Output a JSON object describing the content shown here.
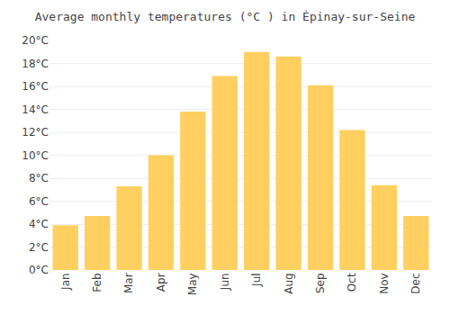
{
  "chart_data": {
    "type": "bar",
    "title": "Average monthly temperatures (°C ) in Épinay-sur-Seine",
    "categories": [
      "Jan",
      "Feb",
      "Mar",
      "Apr",
      "May",
      "Jun",
      "Jul",
      "Aug",
      "Sep",
      "Oct",
      "Nov",
      "Dec"
    ],
    "values": [
      3.9,
      4.7,
      7.3,
      10.0,
      13.8,
      16.9,
      19.0,
      18.6,
      16.1,
      12.2,
      7.4,
      4.7
    ],
    "color": "#FFD060",
    "ylim": [
      0,
      20
    ],
    "yticks": [
      {
        "value": 0,
        "label": "0°C"
      },
      {
        "value": 2,
        "label": "2°C"
      },
      {
        "value": 4,
        "label": "4°C"
      },
      {
        "value": 6,
        "label": "6°C"
      },
      {
        "value": 8,
        "label": "8°C"
      },
      {
        "value": 10,
        "label": "10°C"
      },
      {
        "value": 12,
        "label": "12°C"
      },
      {
        "value": 14,
        "label": "14°C"
      },
      {
        "value": 16,
        "label": "16°C"
      },
      {
        "value": 18,
        "label": "18°C"
      },
      {
        "value": 20,
        "label": "20°C"
      }
    ],
    "grid": true
  }
}
